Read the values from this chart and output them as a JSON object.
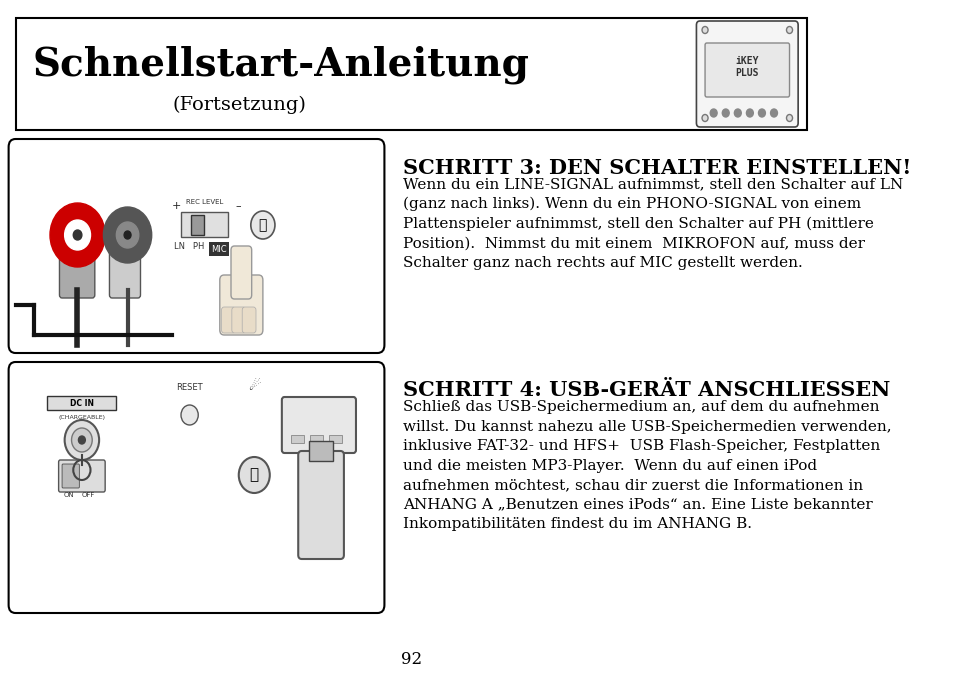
{
  "bg_color": "#ffffff",
  "border_color": "#000000",
  "title_main": "Schnellstart-Anleitung",
  "title_sub": "(Fortsetzung)",
  "title_font_size": 28,
  "title_sub_font_size": 14,
  "step3_heading": "SCHRITT 3: DEN SCHALTER EINSTELLEN!",
  "step3_heading_size": 15,
  "step3_body": "Wenn du ein LINE-SIGNAL aufnimmst, stell den Schalter auf LN\n(ganz nach links). Wenn du ein PHONO-SIGNAL von einem\nPlattenspieler aufnimmst, stell den Schalter auf PH (mittlere\nPosition).  Nimmst du mit einem  MIKROFON auf, muss der\nSchalter ganz nach rechts auf MIC gestellt werden.",
  "step3_body_size": 11,
  "step4_heading": "SCHRITT 4: USB-GERÄT ANSCHLIESSEN",
  "step4_heading_size": 15,
  "step4_body": "Schließ das USB-Speichermedium an, auf dem du aufnehmen\nwillst. Du kannst nahezu alle USB-Speichermedien verwenden,\ninklusive FAT-32- und HFS+  USB Flash-Speicher, Festplatten\nund die meisten MP3-Player.  Wenn du auf einen iPod\naufnehmen möchtest, schau dir zuerst die Informationen in\nANHANG A „Benutzen eines iPods“ an. Eine Liste bekannter\nInkompatibilitäten findest du im ANHANG B.",
  "step4_body_size": 11,
  "page_number": "92",
  "text_color": "#000000"
}
